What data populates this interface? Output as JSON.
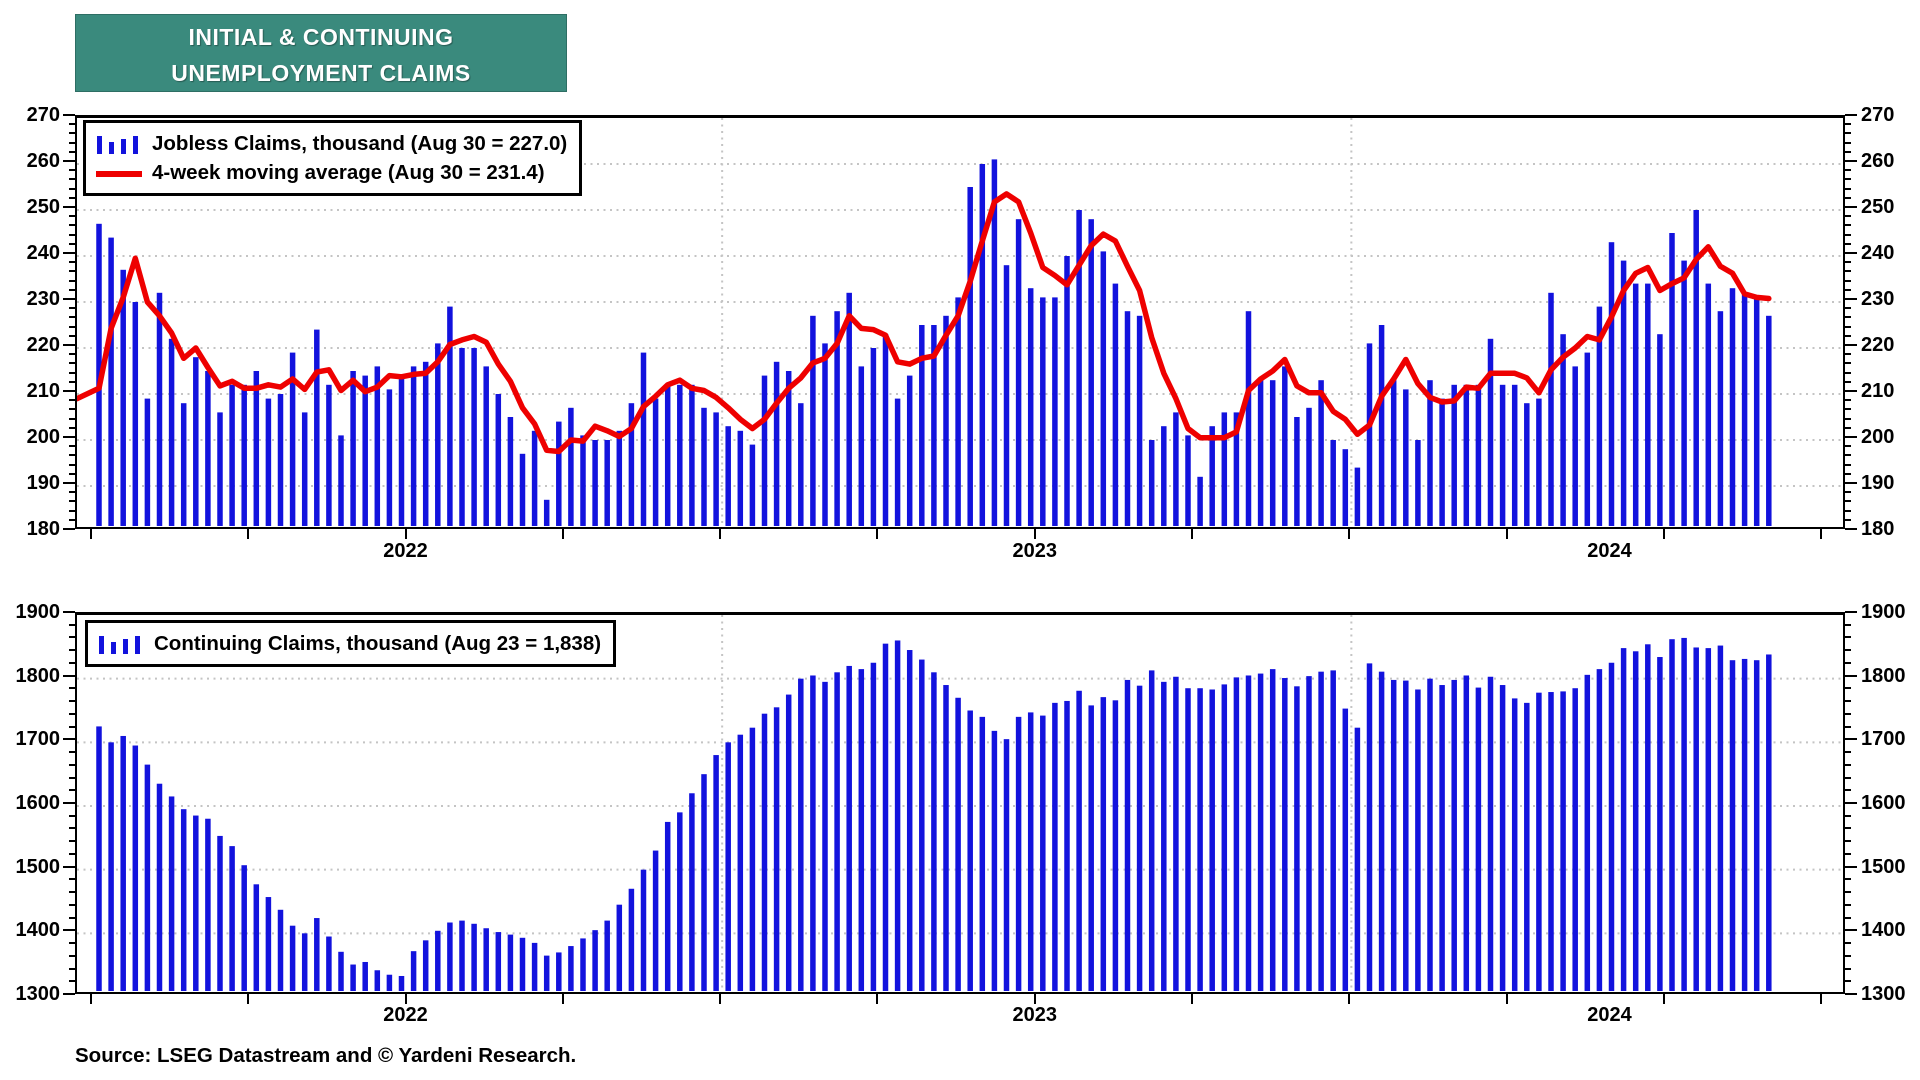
{
  "title": {
    "line1": "INITIAL & CONTINUING",
    "line2": "UNEMPLOYMENT CLAIMS"
  },
  "source": "Source: LSEG Datastream and © Yardeni Research.",
  "colors": {
    "bar_blue": "#1212dd",
    "ma_red": "#ee0000",
    "grid_gray": "#c4c4c4",
    "title_teal": "#3a8a7d",
    "axis_black": "#000000"
  },
  "chart_data": [
    {
      "type": "bar",
      "panel": "initial_claims",
      "legend_bar": "Jobless Claims, thousand (Aug 30 = 227.0)",
      "legend_line": "4-week moving average (Aug 30 = 231.4)",
      "latest_bar_value": 227.0,
      "latest_ma_value": 231.4,
      "ylim": [
        180,
        270
      ],
      "ytick_major": 10,
      "ytick_minor": 2,
      "grid": true,
      "legend_position": "top-left",
      "xlabel_years": [
        {
          "label": "2022",
          "center_index": 25.5
        },
        {
          "label": "2023",
          "center_index": 77.5
        },
        {
          "label": "2024",
          "center_index": 125
        }
      ],
      "year_boundary_indexes": [
        52,
        104
      ],
      "quarter_tick_every": 13,
      "ma_lead_in": [
        192,
        210,
        196
      ],
      "values": [
        247,
        244,
        237,
        230,
        209,
        232,
        222,
        208,
        218,
        215,
        206,
        212,
        212,
        215,
        209,
        210,
        219,
        206,
        224,
        212,
        201,
        215,
        214,
        216,
        211,
        214,
        216,
        217,
        221,
        229,
        220,
        220,
        216,
        210,
        205,
        197,
        202,
        187,
        204,
        207,
        201,
        200,
        200,
        202,
        208,
        219,
        209,
        212,
        212,
        212,
        207,
        206,
        203,
        202,
        199,
        214,
        217,
        215,
        208,
        227,
        221,
        228,
        232,
        216,
        220,
        223,
        209,
        214,
        225,
        225,
        227,
        231,
        255,
        260,
        261,
        238,
        248,
        233,
        231,
        231,
        240,
        250,
        248,
        241,
        234,
        228,
        227,
        200,
        203,
        206,
        201,
        192,
        203,
        206,
        206,
        228,
        213,
        213,
        216,
        205,
        207,
        213,
        200,
        198,
        194,
        221,
        225,
        213,
        211,
        200,
        213,
        209,
        212,
        212,
        212,
        222,
        212,
        212,
        208,
        209,
        232,
        223,
        216,
        219,
        229,
        243,
        239,
        234,
        234,
        223,
        245,
        239,
        250,
        234,
        228,
        233,
        232,
        231,
        227
      ]
    },
    {
      "type": "bar",
      "panel": "continuing_claims",
      "legend_bar": "Continuing Claims, thousand (Aug 23 = 1,838)",
      "latest_bar_value": 1838,
      "ylim": [
        1300,
        1900
      ],
      "ytick_major": 100,
      "ytick_minor": 20,
      "grid": true,
      "legend_position": "top-left",
      "xlabel_years": [
        {
          "label": "2022",
          "center_index": 25.5
        },
        {
          "label": "2023",
          "center_index": 77.5
        },
        {
          "label": "2024",
          "center_index": 125
        }
      ],
      "year_boundary_indexes": [
        52,
        104
      ],
      "quarter_tick_every": 13,
      "values": [
        1725,
        1700,
        1710,
        1695,
        1665,
        1635,
        1615,
        1595,
        1585,
        1580,
        1553,
        1537,
        1507,
        1477,
        1457,
        1437,
        1412,
        1400,
        1424,
        1395,
        1371,
        1351,
        1355,
        1342,
        1335,
        1333,
        1372,
        1389,
        1404,
        1417,
        1420,
        1415,
        1408,
        1402,
        1398,
        1393,
        1385,
        1365,
        1370,
        1380,
        1392,
        1405,
        1420,
        1445,
        1470,
        1500,
        1530,
        1575,
        1590,
        1620,
        1650,
        1680,
        1700,
        1712,
        1723,
        1745,
        1755,
        1775,
        1800,
        1805,
        1795,
        1810,
        1820,
        1815,
        1825,
        1855,
        1860,
        1845,
        1830,
        1810,
        1790,
        1770,
        1750,
        1740,
        1718,
        1705,
        1740,
        1747,
        1742,
        1762,
        1765,
        1781,
        1758,
        1771,
        1766,
        1798,
        1789,
        1813,
        1795,
        1803,
        1785,
        1785,
        1783,
        1791,
        1802,
        1805,
        1808,
        1815,
        1801,
        1788,
        1804,
        1811,
        1813,
        1753,
        1723,
        1824,
        1811,
        1798,
        1797,
        1783,
        1800,
        1790,
        1798,
        1805,
        1786,
        1803,
        1790,
        1769,
        1762,
        1778,
        1779,
        1780,
        1785,
        1806,
        1815,
        1825,
        1848,
        1843,
        1854,
        1834,
        1862,
        1864,
        1849,
        1848,
        1852,
        1829,
        1831,
        1829,
        1838
      ]
    }
  ]
}
